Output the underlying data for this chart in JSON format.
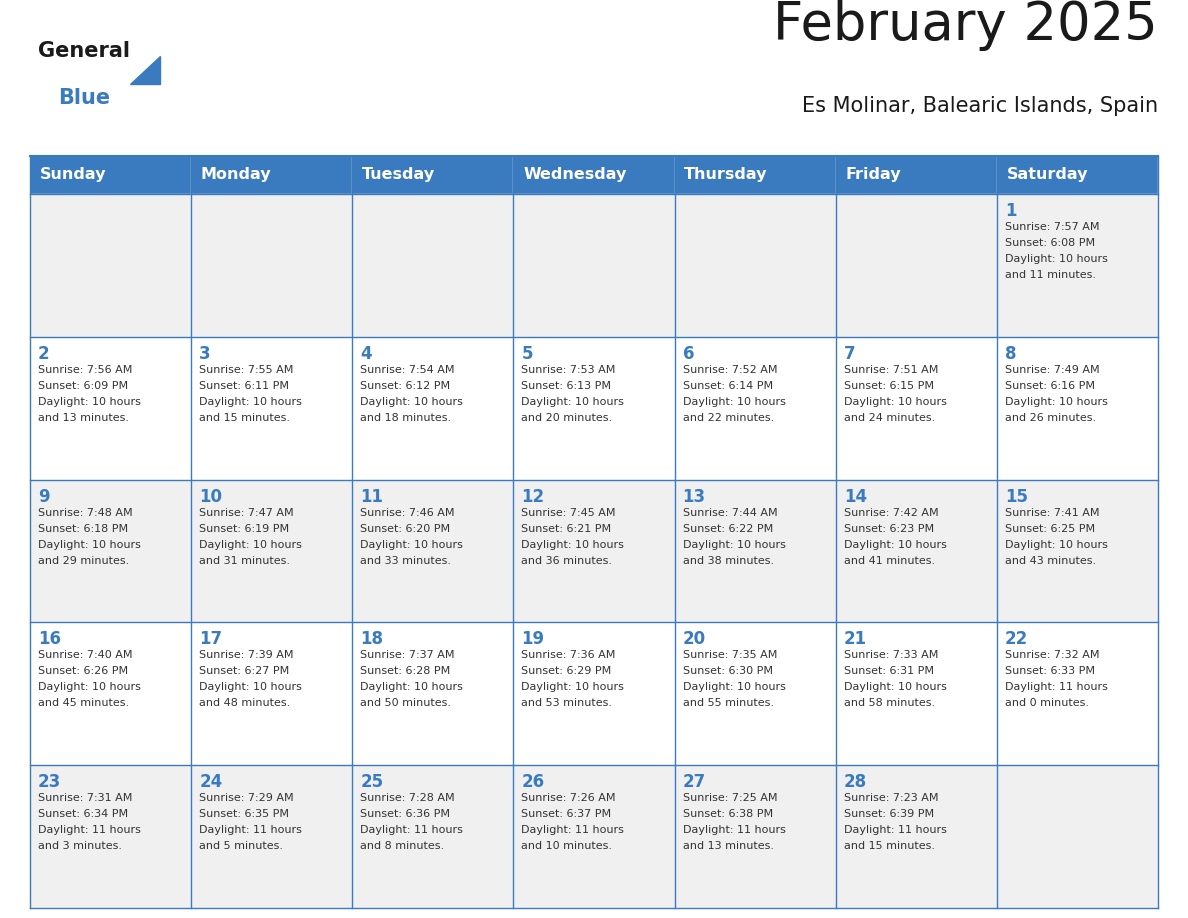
{
  "title": "February 2025",
  "subtitle": "Es Molinar, Balearic Islands, Spain",
  "header_color": "#3a7abf",
  "header_text_color": "#ffffff",
  "cell_bg_row0": "#f0f0f0",
  "cell_bg_row1": "#ffffff",
  "border_color": "#3a7abf",
  "title_color": "#1a1a1a",
  "subtitle_color": "#1a1a1a",
  "day_num_color": "#3a7abf",
  "info_color": "#333333",
  "logo_general_color": "#1a1a1a",
  "logo_blue_color": "#3a7abf",
  "days_of_week": [
    "Sunday",
    "Monday",
    "Tuesday",
    "Wednesday",
    "Thursday",
    "Friday",
    "Saturday"
  ],
  "calendar": [
    [
      null,
      null,
      null,
      null,
      null,
      null,
      {
        "day": "1",
        "sunrise": "7:57 AM",
        "sunset": "6:08 PM",
        "daylight": "10 hours\nand 11 minutes."
      }
    ],
    [
      {
        "day": "2",
        "sunrise": "7:56 AM",
        "sunset": "6:09 PM",
        "daylight": "10 hours\nand 13 minutes."
      },
      {
        "day": "3",
        "sunrise": "7:55 AM",
        "sunset": "6:11 PM",
        "daylight": "10 hours\nand 15 minutes."
      },
      {
        "day": "4",
        "sunrise": "7:54 AM",
        "sunset": "6:12 PM",
        "daylight": "10 hours\nand 18 minutes."
      },
      {
        "day": "5",
        "sunrise": "7:53 AM",
        "sunset": "6:13 PM",
        "daylight": "10 hours\nand 20 minutes."
      },
      {
        "day": "6",
        "sunrise": "7:52 AM",
        "sunset": "6:14 PM",
        "daylight": "10 hours\nand 22 minutes."
      },
      {
        "day": "7",
        "sunrise": "7:51 AM",
        "sunset": "6:15 PM",
        "daylight": "10 hours\nand 24 minutes."
      },
      {
        "day": "8",
        "sunrise": "7:49 AM",
        "sunset": "6:16 PM",
        "daylight": "10 hours\nand 26 minutes."
      }
    ],
    [
      {
        "day": "9",
        "sunrise": "7:48 AM",
        "sunset": "6:18 PM",
        "daylight": "10 hours\nand 29 minutes."
      },
      {
        "day": "10",
        "sunrise": "7:47 AM",
        "sunset": "6:19 PM",
        "daylight": "10 hours\nand 31 minutes."
      },
      {
        "day": "11",
        "sunrise": "7:46 AM",
        "sunset": "6:20 PM",
        "daylight": "10 hours\nand 33 minutes."
      },
      {
        "day": "12",
        "sunrise": "7:45 AM",
        "sunset": "6:21 PM",
        "daylight": "10 hours\nand 36 minutes."
      },
      {
        "day": "13",
        "sunrise": "7:44 AM",
        "sunset": "6:22 PM",
        "daylight": "10 hours\nand 38 minutes."
      },
      {
        "day": "14",
        "sunrise": "7:42 AM",
        "sunset": "6:23 PM",
        "daylight": "10 hours\nand 41 minutes."
      },
      {
        "day": "15",
        "sunrise": "7:41 AM",
        "sunset": "6:25 PM",
        "daylight": "10 hours\nand 43 minutes."
      }
    ],
    [
      {
        "day": "16",
        "sunrise": "7:40 AM",
        "sunset": "6:26 PM",
        "daylight": "10 hours\nand 45 minutes."
      },
      {
        "day": "17",
        "sunrise": "7:39 AM",
        "sunset": "6:27 PM",
        "daylight": "10 hours\nand 48 minutes."
      },
      {
        "day": "18",
        "sunrise": "7:37 AM",
        "sunset": "6:28 PM",
        "daylight": "10 hours\nand 50 minutes."
      },
      {
        "day": "19",
        "sunrise": "7:36 AM",
        "sunset": "6:29 PM",
        "daylight": "10 hours\nand 53 minutes."
      },
      {
        "day": "20",
        "sunrise": "7:35 AM",
        "sunset": "6:30 PM",
        "daylight": "10 hours\nand 55 minutes."
      },
      {
        "day": "21",
        "sunrise": "7:33 AM",
        "sunset": "6:31 PM",
        "daylight": "10 hours\nand 58 minutes."
      },
      {
        "day": "22",
        "sunrise": "7:32 AM",
        "sunset": "6:33 PM",
        "daylight": "11 hours\nand 0 minutes."
      }
    ],
    [
      {
        "day": "23",
        "sunrise": "7:31 AM",
        "sunset": "6:34 PM",
        "daylight": "11 hours\nand 3 minutes."
      },
      {
        "day": "24",
        "sunrise": "7:29 AM",
        "sunset": "6:35 PM",
        "daylight": "11 hours\nand 5 minutes."
      },
      {
        "day": "25",
        "sunrise": "7:28 AM",
        "sunset": "6:36 PM",
        "daylight": "11 hours\nand 8 minutes."
      },
      {
        "day": "26",
        "sunrise": "7:26 AM",
        "sunset": "6:37 PM",
        "daylight": "11 hours\nand 10 minutes."
      },
      {
        "day": "27",
        "sunrise": "7:25 AM",
        "sunset": "6:38 PM",
        "daylight": "11 hours\nand 13 minutes."
      },
      {
        "day": "28",
        "sunrise": "7:23 AM",
        "sunset": "6:39 PM",
        "daylight": "11 hours\nand 15 minutes."
      },
      null
    ]
  ]
}
